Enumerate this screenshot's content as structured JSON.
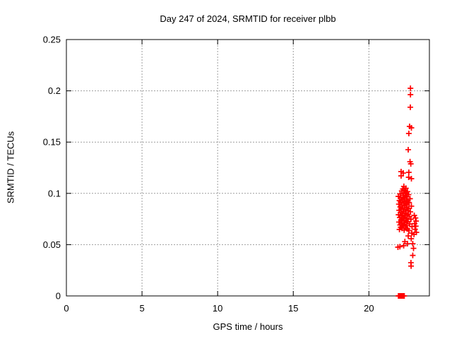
{
  "chart_data": {
    "type": "scatter",
    "title": "Day 247 of 2024, SRMTID for receiver plbb",
    "xlabel": "GPS time / hours",
    "ylabel": "SRMTID / TECUs",
    "xlim": [
      0,
      24
    ],
    "ylim": [
      0,
      0.25
    ],
    "xticks": [
      0,
      5,
      10,
      15,
      20
    ],
    "xtick_labels": [
      "0",
      "5",
      "10",
      "15",
      "20"
    ],
    "yticks": [
      0,
      0.05,
      0.1,
      0.15,
      0.2,
      0.25
    ],
    "ytick_labels": [
      "0",
      "0.05",
      "0.1",
      "0.15",
      "0.2",
      "0.25"
    ],
    "grid": "on",
    "legend": "none",
    "marker": "plus",
    "marker_color": "#ff0000",
    "axis_color": "#000000",
    "grid_color": "#9e9e9e",
    "background": "#ffffff",
    "points": [
      [
        21.95,
        0
      ],
      [
        21.98,
        0
      ],
      [
        22.01,
        0
      ],
      [
        22.04,
        0
      ],
      [
        22.07,
        0
      ],
      [
        22.1,
        0
      ],
      [
        22.13,
        0
      ],
      [
        22.17,
        0
      ],
      [
        22.21,
        0
      ],
      [
        22.28,
        0
      ],
      [
        22.34,
        0
      ],
      [
        22.75,
        0.2025
      ],
      [
        22.75,
        0.1963
      ],
      [
        22.74,
        0.184
      ],
      [
        22.69,
        0.1653
      ],
      [
        22.81,
        0.1639
      ],
      [
        22.64,
        0.1584
      ],
      [
        22.6,
        0.1426
      ],
      [
        22.72,
        0.1309
      ],
      [
        22.77,
        0.1288
      ],
      [
        22.13,
        0.1212
      ],
      [
        22.27,
        0.1198
      ],
      [
        22.64,
        0.1205
      ],
      [
        22.13,
        0.1171
      ],
      [
        22.63,
        0.1157
      ],
      [
        22.81,
        0.1143
      ],
      [
        22.31,
        0.1068
      ],
      [
        22.45,
        0.105
      ],
      [
        22.24,
        0.1043
      ],
      [
        22.38,
        0.1031
      ],
      [
        22.17,
        0.1024
      ],
      [
        22.55,
        0.1017
      ],
      [
        22.3,
        0.1006
      ],
      [
        22.47,
        0.0999
      ],
      [
        22.06,
        0.0995
      ],
      [
        22.62,
        0.0988
      ],
      [
        22.26,
        0.0981
      ],
      [
        22.4,
        0.0974
      ],
      [
        21.95,
        0.097
      ],
      [
        22.52,
        0.0966
      ],
      [
        22.12,
        0.0959
      ],
      [
        22.33,
        0.0952
      ],
      [
        22.72,
        0.0948
      ],
      [
        22.21,
        0.0941
      ],
      [
        22.48,
        0.0937
      ],
      [
        22.02,
        0.093
      ],
      [
        22.58,
        0.0926
      ],
      [
        22.36,
        0.0921
      ],
      [
        22.1,
        0.0915
      ],
      [
        22.66,
        0.091
      ],
      [
        22.28,
        0.0906
      ],
      [
        22.44,
        0.0899
      ],
      [
        21.98,
        0.0895
      ],
      [
        22.53,
        0.089
      ],
      [
        22.18,
        0.0884
      ],
      [
        22.35,
        0.0879
      ],
      [
        22.81,
        0.0875
      ],
      [
        22.07,
        0.0868
      ],
      [
        22.5,
        0.0864
      ],
      [
        22.25,
        0.0857
      ],
      [
        22.63,
        0.0853
      ],
      [
        22.14,
        0.0846
      ],
      [
        22.39,
        0.0842
      ],
      [
        22.0,
        0.0835
      ],
      [
        22.57,
        0.0831
      ],
      [
        22.3,
        0.0824
      ],
      [
        22.74,
        0.082
      ],
      [
        22.09,
        0.0813
      ],
      [
        22.46,
        0.0808
      ],
      [
        22.22,
        0.0802
      ],
      [
        22.61,
        0.0797
      ],
      [
        21.96,
        0.0791
      ],
      [
        22.41,
        0.0786
      ],
      [
        22.16,
        0.078
      ],
      [
        22.68,
        0.0775
      ],
      [
        22.34,
        0.0769
      ],
      [
        22.04,
        0.0764
      ],
      [
        22.52,
        0.0758
      ],
      [
        22.27,
        0.0753
      ],
      [
        22.78,
        0.0747
      ],
      [
        22.12,
        0.0742
      ],
      [
        22.44,
        0.0736
      ],
      [
        22.2,
        0.0731
      ],
      [
        22.59,
        0.0725
      ],
      [
        21.99,
        0.072
      ],
      [
        22.37,
        0.0714
      ],
      [
        22.15,
        0.0709
      ],
      [
        22.7,
        0.0703
      ],
      [
        22.31,
        0.0698
      ],
      [
        22.06,
        0.0692
      ],
      [
        22.49,
        0.0687
      ],
      [
        22.24,
        0.0681
      ],
      [
        22.85,
        0.0676
      ],
      [
        22.1,
        0.067
      ],
      [
        22.42,
        0.0665
      ],
      [
        22.19,
        0.0659
      ],
      [
        22.55,
        0.0653
      ],
      [
        22.02,
        0.0648
      ],
      [
        22.33,
        0.0642
      ],
      [
        22.64,
        0.0636
      ],
      [
        22.84,
        0.0613
      ],
      [
        23.0,
        0.0785
      ],
      [
        23.08,
        0.076
      ],
      [
        23.12,
        0.073
      ],
      [
        23.02,
        0.0705
      ],
      [
        23.1,
        0.068
      ],
      [
        23.05,
        0.065
      ],
      [
        23.14,
        0.062
      ],
      [
        22.98,
        0.06
      ],
      [
        22.6,
        0.0585
      ],
      [
        22.8,
        0.0558
      ],
      [
        22.38,
        0.053
      ],
      [
        22.55,
        0.051
      ],
      [
        22.9,
        0.051
      ],
      [
        22.3,
        0.049
      ],
      [
        22.05,
        0.048
      ],
      [
        21.92,
        0.0475
      ],
      [
        22.95,
        0.0464
      ],
      [
        22.9,
        0.0395
      ],
      [
        22.78,
        0.0324
      ],
      [
        22.79,
        0.0291
      ]
    ]
  }
}
